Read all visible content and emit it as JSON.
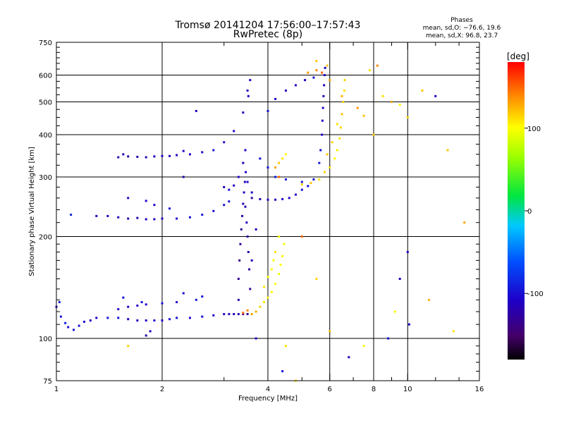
{
  "chart_data": {
    "type": "scatter",
    "title": "Tromsø 20141204 17:56:00–17:57:43",
    "subtitle": "RwPretec (8p)",
    "xlabel": "Frequency [MHz]",
    "ylabel": "Stationary phase Virtual Height [km]",
    "x_scale": "log",
    "y_scale": "log",
    "xlim": [
      1,
      16
    ],
    "ylim": [
      75,
      750
    ],
    "x_ticks": [
      1,
      2,
      4,
      6,
      8,
      10,
      16
    ],
    "y_ticks": [
      75,
      100,
      200,
      300,
      400,
      500,
      600,
      750
    ],
    "grid": true,
    "legend": {
      "title": "Phases",
      "lines": [
        "mean, sd,O: −76.6, 19.6",
        "mean, sd,X:  96.8, 23.7"
      ],
      "placement": "top-right"
    },
    "colorbar": {
      "label": "[deg]",
      "ticks": [
        100,
        0,
        -100
      ],
      "range": [
        -180,
        180
      ],
      "colormap": "rainbow"
    },
    "series": [
      {
        "points": [
          [
            1.0,
            124,
            -100
          ],
          [
            1.03,
            116,
            -95
          ],
          [
            1.06,
            111,
            -90
          ],
          [
            1.08,
            108,
            -100
          ],
          [
            1.12,
            106,
            -95
          ],
          [
            1.16,
            109,
            -100
          ],
          [
            1.2,
            112,
            -105
          ],
          [
            1.25,
            113,
            -110
          ],
          [
            1.3,
            115,
            -105
          ],
          [
            1.4,
            115,
            -100
          ],
          [
            1.5,
            115,
            -100
          ],
          [
            1.6,
            114,
            -105
          ],
          [
            1.7,
            113,
            -110
          ],
          [
            1.8,
            113,
            -110
          ],
          [
            1.9,
            113,
            -105
          ],
          [
            2.0,
            113,
            -110
          ],
          [
            2.1,
            114,
            -105
          ],
          [
            2.2,
            115,
            -100
          ],
          [
            2.4,
            115,
            -105
          ],
          [
            2.6,
            116,
            -100
          ],
          [
            2.8,
            117,
            -105
          ],
          [
            3.0,
            118,
            -100
          ],
          [
            3.1,
            118,
            -110
          ],
          [
            3.2,
            118,
            -115
          ],
          [
            3.3,
            118,
            -120
          ],
          [
            3.4,
            118,
            -125
          ],
          [
            3.5,
            118,
            -130
          ],
          [
            1.5,
            122,
            -105
          ],
          [
            1.6,
            124,
            -110
          ],
          [
            1.7,
            125,
            -110
          ],
          [
            1.8,
            126,
            -105
          ],
          [
            2.0,
            127,
            -100
          ],
          [
            2.2,
            128,
            -105
          ],
          [
            2.5,
            130,
            -95
          ],
          [
            1.55,
            132,
            -100
          ],
          [
            1.75,
            128,
            -95
          ],
          [
            2.3,
            136,
            -100
          ],
          [
            2.6,
            133,
            -95
          ],
          [
            1.8,
            102,
            -120
          ],
          [
            1.85,
            105,
            -115
          ],
          [
            1.02,
            128,
            -90
          ],
          [
            3.3,
            130,
            -120
          ],
          [
            3.3,
            150,
            -130
          ],
          [
            3.32,
            170,
            -135
          ],
          [
            3.34,
            190,
            -130
          ],
          [
            3.36,
            210,
            -125
          ],
          [
            3.38,
            230,
            -120
          ],
          [
            3.4,
            250,
            -120
          ],
          [
            3.42,
            270,
            -115
          ],
          [
            3.44,
            290,
            -115
          ],
          [
            3.46,
            310,
            -110
          ],
          [
            3.4,
            330,
            -115
          ],
          [
            3.3,
            300,
            -110
          ],
          [
            3.5,
            200,
            -125
          ],
          [
            3.52,
            180,
            -125
          ],
          [
            3.54,
            160,
            -130
          ],
          [
            3.56,
            140,
            -130
          ],
          [
            3.48,
            220,
            -120
          ],
          [
            3.45,
            245,
            -118
          ],
          [
            3.0,
            280,
            -110
          ],
          [
            3.1,
            275,
            -100
          ],
          [
            3.2,
            283,
            -105
          ],
          [
            3.5,
            290,
            -100
          ],
          [
            3.6,
            270,
            -110
          ],
          [
            1.3,
            230,
            -115
          ],
          [
            1.4,
            230,
            -110
          ],
          [
            1.5,
            228,
            -115
          ],
          [
            1.6,
            226,
            -120
          ],
          [
            1.7,
            227,
            -115
          ],
          [
            1.8,
            225,
            -110
          ],
          [
            1.9,
            225,
            -115
          ],
          [
            2.0,
            226,
            -110
          ],
          [
            2.2,
            226,
            -105
          ],
          [
            2.4,
            228,
            -100
          ],
          [
            2.6,
            232,
            -95
          ],
          [
            2.8,
            238,
            -100
          ],
          [
            3.0,
            248,
            -95
          ],
          [
            3.1,
            254,
            -100
          ],
          [
            1.6,
            260,
            -110
          ],
          [
            1.8,
            255,
            -105
          ],
          [
            1.9,
            248,
            -105
          ],
          [
            2.1,
            242,
            -100
          ],
          [
            1.1,
            232,
            -90
          ],
          [
            1.5,
            343,
            -120
          ],
          [
            1.6,
            345,
            -125
          ],
          [
            1.7,
            344,
            -120
          ],
          [
            1.8,
            343,
            -120
          ],
          [
            1.9,
            345,
            -115
          ],
          [
            2.0,
            346,
            -110
          ],
          [
            2.1,
            346,
            -115
          ],
          [
            2.2,
            348,
            -110
          ],
          [
            2.4,
            350,
            -105
          ],
          [
            2.6,
            355,
            -100
          ],
          [
            2.8,
            360,
            -95
          ],
          [
            1.55,
            350,
            -115
          ],
          [
            2.3,
            358,
            -105
          ],
          [
            3.4,
            465,
            -110
          ],
          [
            3.5,
            540,
            -115
          ],
          [
            3.52,
            520,
            -110
          ],
          [
            3.56,
            580,
            -105
          ],
          [
            3.45,
            360,
            -110
          ],
          [
            3.0,
            380,
            -100
          ],
          [
            3.2,
            410,
            -105
          ],
          [
            3.6,
            260,
            -120
          ],
          [
            3.8,
            258,
            -118
          ],
          [
            4.0,
            257,
            -115
          ],
          [
            4.2,
            257,
            -115
          ],
          [
            4.4,
            258,
            -110
          ],
          [
            4.6,
            260,
            -110
          ],
          [
            4.8,
            266,
            -105
          ],
          [
            5.0,
            275,
            -100
          ],
          [
            5.2,
            282,
            -100
          ],
          [
            5.4,
            295,
            -100
          ],
          [
            5.6,
            330,
            -95
          ],
          [
            5.65,
            360,
            -100
          ],
          [
            5.7,
            400,
            -105
          ],
          [
            5.72,
            440,
            -110
          ],
          [
            5.74,
            480,
            -115
          ],
          [
            5.76,
            520,
            -120
          ],
          [
            5.78,
            560,
            -115
          ],
          [
            5.8,
            600,
            -110
          ],
          [
            5.82,
            630,
            -110
          ],
          [
            4.0,
            470,
            -100
          ],
          [
            4.2,
            510,
            -105
          ],
          [
            4.5,
            540,
            -110
          ],
          [
            4.8,
            560,
            -105
          ],
          [
            5.1,
            580,
            -110
          ],
          [
            5.4,
            590,
            -100
          ],
          [
            3.8,
            340,
            -100
          ],
          [
            4.0,
            320,
            -90
          ],
          [
            4.2,
            300,
            -95
          ],
          [
            4.5,
            295,
            -90
          ],
          [
            5.0,
            290,
            -95
          ],
          [
            3.7,
            210,
            -110
          ],
          [
            3.6,
            170,
            -115
          ],
          [
            3.6,
            118,
            130
          ],
          [
            3.7,
            120,
            125
          ],
          [
            3.8,
            124,
            115
          ],
          [
            3.9,
            128,
            110
          ],
          [
            4.0,
            132,
            105
          ],
          [
            4.1,
            137,
            100
          ],
          [
            4.2,
            145,
            100
          ],
          [
            4.3,
            155,
            95
          ],
          [
            4.35,
            165,
            100
          ],
          [
            4.4,
            175,
            105
          ],
          [
            4.45,
            190,
            95
          ],
          [
            4.3,
            200,
            100
          ],
          [
            3.9,
            142,
            110
          ],
          [
            4.0,
            152,
            100
          ],
          [
            4.1,
            160,
            105
          ],
          [
            4.15,
            170,
            100
          ],
          [
            4.2,
            180,
            110
          ],
          [
            3.5,
            121,
            140
          ],
          [
            3.4,
            119,
            150
          ],
          [
            4.2,
            320,
            130
          ],
          [
            4.3,
            330,
            120
          ],
          [
            4.4,
            340,
            110
          ],
          [
            4.5,
            350,
            100
          ],
          [
            4.3,
            300,
            150
          ],
          [
            5.0,
            285,
            115
          ],
          [
            5.3,
            288,
            120
          ],
          [
            5.6,
            295,
            110
          ],
          [
            5.8,
            310,
            115
          ],
          [
            6.0,
            320,
            110
          ],
          [
            6.2,
            340,
            100
          ],
          [
            6.3,
            360,
            105
          ],
          [
            6.4,
            390,
            110
          ],
          [
            6.45,
            420,
            115
          ],
          [
            6.5,
            460,
            120
          ],
          [
            6.55,
            500,
            115
          ],
          [
            6.6,
            540,
            110
          ],
          [
            6.62,
            580,
            115
          ],
          [
            6.5,
            520,
            125
          ],
          [
            6.3,
            430,
            110
          ],
          [
            6.1,
            380,
            115
          ],
          [
            5.9,
            350,
            120
          ],
          [
            6.0,
            580,
            130
          ],
          [
            5.5,
            620,
            140
          ],
          [
            5.2,
            610,
            135
          ],
          [
            5.9,
            640,
            120
          ],
          [
            5.7,
            610,
            150
          ],
          [
            5.0,
            200,
            150
          ],
          [
            5.5,
            150,
            115
          ],
          [
            6.0,
            105,
            120
          ],
          [
            4.5,
            95,
            110
          ],
          [
            7.2,
            480,
            135
          ],
          [
            7.5,
            455,
            120
          ],
          [
            8.0,
            400,
            115
          ],
          [
            8.5,
            520,
            110
          ],
          [
            9.0,
            500,
            130
          ],
          [
            9.5,
            490,
            100
          ],
          [
            10.0,
            450,
            115
          ],
          [
            10.0,
            180,
            -110
          ],
          [
            9.5,
            150,
            -110
          ],
          [
            10.1,
            110,
            -105
          ],
          [
            9.2,
            120,
            100
          ],
          [
            11.5,
            130,
            125
          ],
          [
            13.5,
            105,
            110
          ],
          [
            12.0,
            520,
            -105
          ],
          [
            11.0,
            540,
            120
          ],
          [
            8.2,
            640,
            140
          ],
          [
            7.8,
            620,
            110
          ],
          [
            13.0,
            360,
            120
          ],
          [
            14.5,
            220,
            130
          ],
          [
            8.8,
            100,
            -100
          ],
          [
            7.5,
            95,
            100
          ],
          [
            4.4,
            80,
            -95
          ],
          [
            4.8,
            75,
            110
          ],
          [
            3.7,
            100,
            -110
          ],
          [
            6.8,
            88,
            -110
          ],
          [
            1.6,
            95,
            115
          ],
          [
            2.5,
            470,
            -110
          ],
          [
            2.3,
            300,
            -120
          ],
          [
            5.5,
            660,
            120
          ]
        ]
      }
    ]
  }
}
